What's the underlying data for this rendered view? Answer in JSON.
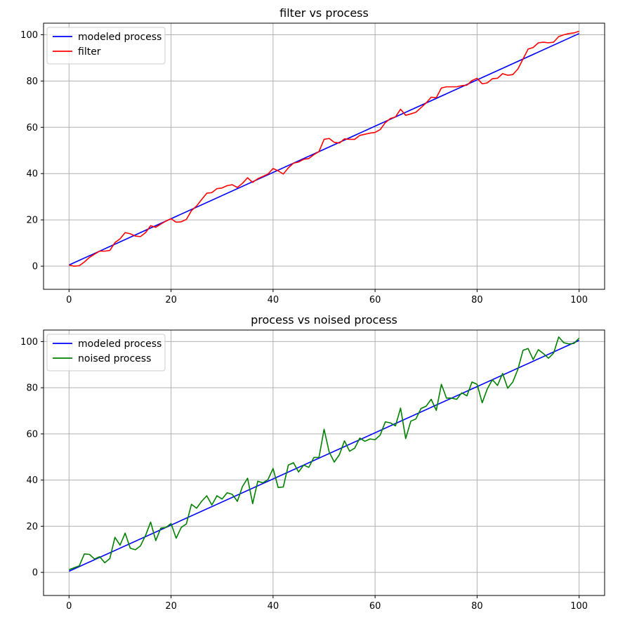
{
  "chart_data": [
    {
      "type": "line",
      "title": "filter vs process",
      "xlabel": "",
      "ylabel": "",
      "xlim": [
        -5,
        105
      ],
      "ylim": [
        -10,
        105
      ],
      "xticks": [
        0,
        20,
        40,
        60,
        80,
        100
      ],
      "yticks": [
        0,
        20,
        40,
        60,
        80,
        100
      ],
      "grid": true,
      "legend_position": "top-left",
      "series": [
        {
          "name": "modeled process",
          "color": "#0000ff",
          "x": [
            0,
            100
          ],
          "y": [
            0.5,
            100.5
          ]
        },
        {
          "name": "filter",
          "color": "#ff0000",
          "x": [
            0,
            1,
            2,
            3,
            4,
            5,
            6,
            7,
            8,
            9,
            10,
            11,
            12,
            13,
            14,
            15,
            16,
            17,
            18,
            19,
            20,
            21,
            22,
            23,
            24,
            25,
            26,
            27,
            28,
            29,
            30,
            31,
            32,
            33,
            34,
            35,
            36,
            37,
            38,
            39,
            40,
            41,
            42,
            43,
            44,
            45,
            46,
            47,
            48,
            49,
            50,
            51,
            52,
            53,
            54,
            55,
            56,
            57,
            58,
            59,
            60,
            61,
            62,
            63,
            64,
            65,
            66,
            67,
            68,
            69,
            70,
            71,
            72,
            73,
            74,
            75,
            76,
            77,
            78,
            79,
            80,
            81,
            82,
            83,
            84,
            85,
            86,
            87,
            88,
            89,
            90,
            91,
            92,
            93,
            94,
            95,
            96,
            97,
            98,
            99,
            100
          ],
          "y": [
            0.5,
            0,
            0.2,
            1.8,
            3.8,
            5.2,
            6.5,
            6.5,
            6.8,
            10.2,
            11.8,
            14.5,
            14.0,
            13.0,
            12.8,
            14.5,
            17.5,
            16.8,
            18.2,
            19.5,
            20.5,
            19.0,
            19.2,
            20.2,
            24.0,
            26.0,
            28.8,
            31.5,
            31.8,
            33.5,
            33.8,
            34.8,
            35.2,
            34.0,
            35.8,
            38.2,
            36.2,
            37.8,
            38.8,
            39.8,
            42.2,
            41.2,
            39.8,
            42.5,
            44.5,
            45.0,
            46.2,
            46.5,
            48.2,
            49.5,
            54.8,
            55.2,
            53.5,
            53.2,
            55.0,
            54.8,
            54.8,
            56.5,
            57.0,
            57.5,
            57.8,
            59.0,
            62.0,
            63.8,
            64.5,
            67.8,
            65.2,
            65.8,
            66.5,
            68.5,
            70.5,
            73.0,
            72.8,
            77.0,
            77.5,
            77.5,
            77.5,
            78.0,
            78.2,
            80.2,
            81.2,
            78.8,
            79.2,
            81.0,
            81.2,
            83.2,
            82.5,
            82.8,
            85.2,
            89.5,
            93.8,
            94.5,
            96.5,
            96.8,
            96.5,
            96.8,
            99.2,
            100.0,
            100.5,
            100.8,
            101.5
          ]
        }
      ]
    },
    {
      "type": "line",
      "title": "process vs noised process",
      "xlabel": "",
      "ylabel": "",
      "xlim": [
        -5,
        105
      ],
      "ylim": [
        -10,
        105
      ],
      "xticks": [
        0,
        20,
        40,
        60,
        80,
        100
      ],
      "yticks": [
        0,
        20,
        40,
        60,
        80,
        100
      ],
      "grid": true,
      "legend_position": "top-left",
      "series": [
        {
          "name": "modeled process",
          "color": "#0000ff",
          "x": [
            0,
            100
          ],
          "y": [
            0.5,
            100.5
          ]
        },
        {
          "name": "noised process",
          "color": "#008000",
          "x": [
            0,
            1,
            2,
            3,
            4,
            5,
            6,
            7,
            8,
            9,
            10,
            11,
            12,
            13,
            14,
            15,
            16,
            17,
            18,
            19,
            20,
            21,
            22,
            23,
            24,
            25,
            26,
            27,
            28,
            29,
            30,
            31,
            32,
            33,
            34,
            35,
            36,
            37,
            38,
            39,
            40,
            41,
            42,
            43,
            44,
            45,
            46,
            47,
            48,
            49,
            50,
            51,
            52,
            53,
            54,
            55,
            56,
            57,
            58,
            59,
            60,
            61,
            62,
            63,
            64,
            65,
            66,
            67,
            68,
            69,
            70,
            71,
            72,
            73,
            74,
            75,
            76,
            77,
            78,
            79,
            80,
            81,
            82,
            83,
            84,
            85,
            86,
            87,
            88,
            89,
            90,
            91,
            92,
            93,
            94,
            95,
            96,
            97,
            98,
            99,
            100
          ],
          "y": [
            1.2,
            2.0,
            2.8,
            8.0,
            7.8,
            5.8,
            6.8,
            4.2,
            6.0,
            15.2,
            11.8,
            17.0,
            10.5,
            9.8,
            11.5,
            16.0,
            21.8,
            13.8,
            19.2,
            19.5,
            21.2,
            14.8,
            19.5,
            21.0,
            29.5,
            27.8,
            30.8,
            33.2,
            29.2,
            33.2,
            31.8,
            34.5,
            33.8,
            30.8,
            37.2,
            40.8,
            29.8,
            39.5,
            38.8,
            40.2,
            45.0,
            36.8,
            37.0,
            46.5,
            47.5,
            43.5,
            46.5,
            45.5,
            49.8,
            49.8,
            62.0,
            52.2,
            47.8,
            51.0,
            57.0,
            52.5,
            53.8,
            58.2,
            56.8,
            57.8,
            57.5,
            59.5,
            65.2,
            64.8,
            63.5,
            71.2,
            58.0,
            65.5,
            66.5,
            71.0,
            72.0,
            75.0,
            70.2,
            81.5,
            75.5,
            75.5,
            75.0,
            77.8,
            76.5,
            82.5,
            81.5,
            73.5,
            79.5,
            83.5,
            81.0,
            86.2,
            79.8,
            82.5,
            88.0,
            96.2,
            97.0,
            92.2,
            96.5,
            94.8,
            92.8,
            95.0,
            102.0,
            99.5,
            99.0,
            99.2,
            101.5
          ]
        }
      ]
    }
  ]
}
